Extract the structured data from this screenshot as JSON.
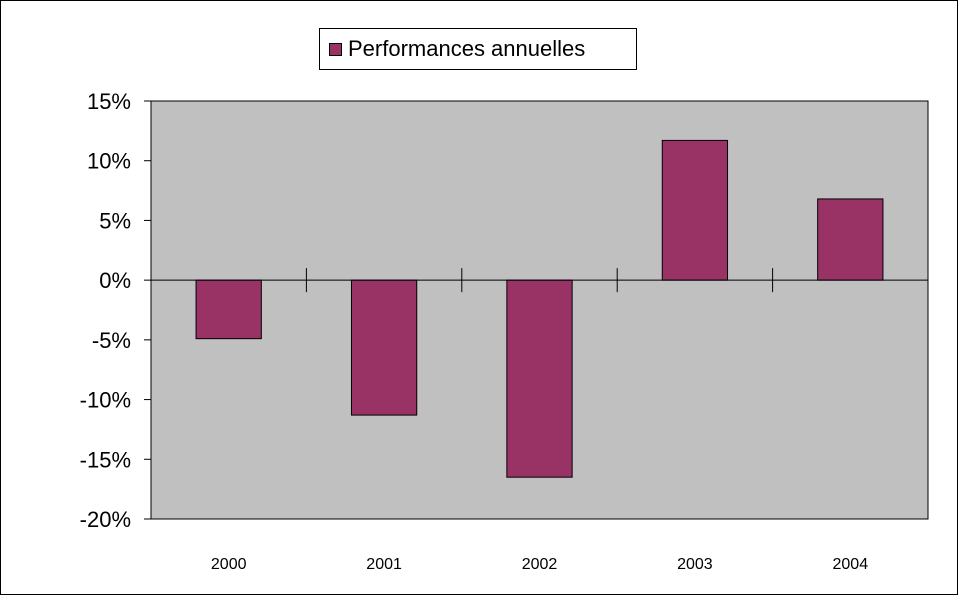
{
  "colors": {
    "bar": "#993366",
    "plot_background": "#c0c0c0",
    "axis": "#000000"
  },
  "chart_data": {
    "type": "bar",
    "categories": [
      "2000",
      "2001",
      "2002",
      "2003",
      "2004"
    ],
    "series": [
      {
        "name": "Performances annuelles",
        "values": [
          -0.049,
          -0.113,
          -0.165,
          0.117,
          0.068
        ]
      }
    ],
    "ylim": [
      -0.2,
      0.15
    ],
    "yticks": [
      0.15,
      0.1,
      0.05,
      0.0,
      -0.05,
      -0.1,
      -0.15,
      -0.2
    ],
    "ytick_labels": [
      "15%",
      "10%",
      "5%",
      "0%",
      "-5%",
      "-10%",
      "-15%",
      "-20%"
    ],
    "grid": false,
    "legend_position": "top-center"
  }
}
